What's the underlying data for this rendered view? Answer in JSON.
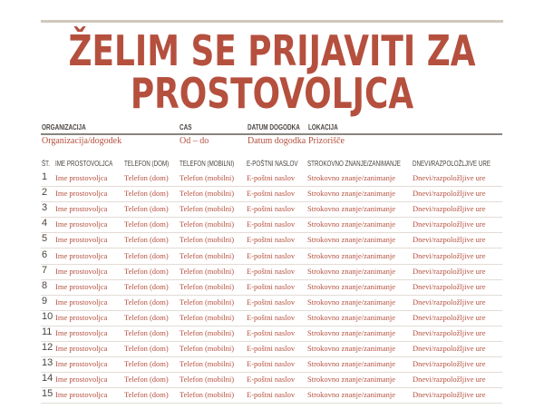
{
  "title": {
    "line1": "ŽELIM SE PRIJAVITI ZA",
    "line2": "PROSTOVOLJCA"
  },
  "info": {
    "labels": [
      "ORGANIZACIJA",
      "CAS",
      "DATUM DOGODKA",
      "LOKACIJA"
    ],
    "values": [
      "Organizacija/dogodek",
      "Od – do",
      "Datum dogodka",
      "Prizorišče"
    ]
  },
  "table": {
    "headers": [
      "ŠT.",
      "IME PROSTOVOLJCA",
      "TELEFON (DOM)",
      "TELEFON (MOBILNI)",
      "E-POŠTNI NASLOV",
      "STROKOVNO ZNANJE/ZANIMANJE",
      "DNEVI/RAZPOLOŽLJIVE URE"
    ],
    "row_template": [
      "Ime prostovoljca",
      "Telefon (dom)",
      "Telefon (mobilni)",
      "E-poštni naslov",
      "Strokovno znanje/zanimanje",
      "Dnevi/razpoložljive ure"
    ],
    "row_numbers": [
      "1",
      "2",
      "3",
      "4",
      "5",
      "6",
      "7",
      "8",
      "9",
      "10",
      "11",
      "12",
      "13",
      "14",
      "15"
    ]
  },
  "colors": {
    "accent": "#b5503e",
    "text": "#4a4440"
  }
}
